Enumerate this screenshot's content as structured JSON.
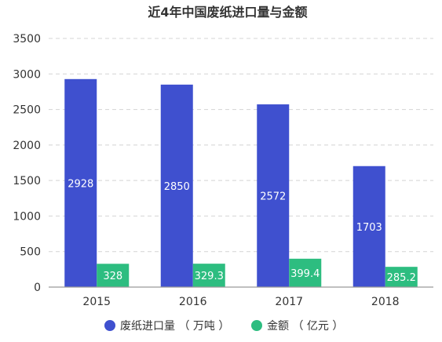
{
  "chart_data": {
    "type": "bar",
    "title": "近4年中国废纸进口量与金额",
    "categories": [
      "2015",
      "2016",
      "2017",
      "2018"
    ],
    "ylim": [
      0,
      3500
    ],
    "yticks": [
      0,
      500,
      1000,
      1500,
      2000,
      2500,
      3000,
      3500
    ],
    "grid": true,
    "legend_position": "bottom",
    "series": [
      {
        "name": "废纸进口量（万吨）",
        "values": [
          2928,
          2850,
          2572,
          1703
        ],
        "labels": [
          "2928",
          "2850",
          "2572",
          "1703"
        ],
        "color": "#3f50cf"
      },
      {
        "name": "金额（亿元）",
        "values": [
          328,
          329.3,
          399.4,
          285.2
        ],
        "labels": [
          "328",
          "329.3",
          "399.4",
          "285.2"
        ],
        "color": "#2dbd80"
      }
    ],
    "legend": [
      {
        "name": "废纸进口量（万吨）",
        "text": "废纸进口量 （ 万吨 ）",
        "color": "#3f50cf"
      },
      {
        "name": "金额（亿元）",
        "text": "金额 （ 亿元 ）",
        "color": "#2dbd80"
      }
    ]
  }
}
